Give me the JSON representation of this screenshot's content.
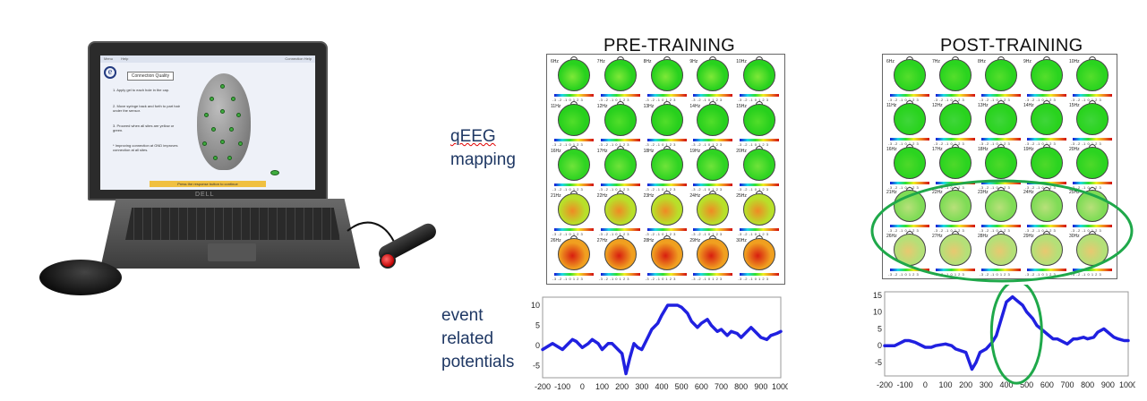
{
  "laptop": {
    "screen": {
      "topbar_left": "Menu",
      "topbar_mid": "Help",
      "topbar_right": "Connection Help",
      "connection_button": "Connection Quality",
      "step1": "1. Apply gel to each hole in the cap.",
      "step2": "2. Move syringe back and forth to part hair under the sensor.",
      "step3": "3. Proceed when all sites are yellow or green.",
      "step4": "* Improving connection at GND improves connection at all sites.",
      "bottom_bar": "Press the response button to continue"
    },
    "brand": "DELL"
  },
  "labels": {
    "qeeg": "qEEG",
    "mapping": "mapping",
    "erp_line1": "event",
    "erp_line2": "related",
    "erp_line3": "potentials"
  },
  "pre": {
    "title": "PRE-TRAINING",
    "rows": [
      {
        "freqs": [
          "6Hz",
          "7Hz",
          "8Hz",
          "9Hz",
          "10Hz"
        ],
        "color": "#28d21e",
        "hot": "#7ee838"
      },
      {
        "freqs": [
          "11Hz",
          "12Hz",
          "13Hz",
          "14Hz",
          "15Hz"
        ],
        "color": "#27d01d",
        "hot": "#52de2a"
      },
      {
        "freqs": [
          "16Hz",
          "17Hz",
          "18Hz",
          "19Hz",
          "20Hz"
        ],
        "color": "#2fd422",
        "hot": "#6fe33a"
      },
      {
        "freqs": [
          "21Hz",
          "22Hz",
          "23Hz",
          "24Hz",
          "25Hz"
        ],
        "color": "#b8e02a",
        "hot": "#f08a24"
      },
      {
        "freqs": [
          "26Hz",
          "27Hz",
          "28Hz",
          "29Hz",
          "30Hz"
        ],
        "color": "#f0a020",
        "hot": "#d81e10"
      }
    ],
    "tick_text": "-3 -2 -1 0 1 2 3"
  },
  "post": {
    "title": "POST-TRAINING",
    "rows": [
      {
        "freqs": [
          "6Hz",
          "7Hz",
          "8Hz",
          "9Hz",
          "10Hz"
        ],
        "color": "#2ad41f",
        "hot": "#55de2c"
      },
      {
        "freqs": [
          "11Hz",
          "12Hz",
          "13Hz",
          "14Hz",
          "15Hz"
        ],
        "color": "#29d31e",
        "hot": "#3fd63a"
      },
      {
        "freqs": [
          "16Hz",
          "17Hz",
          "18Hz",
          "19Hz",
          "20Hz"
        ],
        "color": "#2bd420",
        "hot": "#4ed92a"
      },
      {
        "freqs": [
          "21Hz",
          "22Hz",
          "23Hz",
          "24Hz",
          "25Hz"
        ],
        "color": "#7fdc56",
        "hot": "#b8e07a"
      },
      {
        "freqs": [
          "26Hz",
          "27Hz",
          "28Hz",
          "29Hz",
          "30Hz"
        ],
        "color": "#b4e078",
        "hot": "#e8c870"
      }
    ],
    "tick_text": "-3 -2 -1 0 1 2 3"
  },
  "colors": {
    "erp_line": "#2020e0",
    "highlight": "#1fa84a",
    "label_text": "#1f3864"
  },
  "chart_data": [
    {
      "type": "line",
      "title": "",
      "xlabel": "",
      "ylabel": "",
      "x_ticks": [
        -200,
        -100,
        0,
        100,
        200,
        300,
        400,
        500,
        600,
        700,
        800,
        900,
        1000
      ],
      "y_ticks": [
        -5,
        0,
        5,
        10
      ],
      "ylim": [
        -8,
        12
      ],
      "xlim": [
        -200,
        1000
      ],
      "series": [
        {
          "x": [
            -200,
            -150,
            -100,
            -80,
            -50,
            -30,
            0,
            30,
            50,
            80,
            100,
            130,
            150,
            180,
            200,
            220,
            240,
            260,
            280,
            300,
            330,
            350,
            380,
            400,
            430,
            450,
            480,
            500,
            530,
            550,
            580,
            600,
            630,
            650,
            680,
            700,
            730,
            750,
            780,
            800,
            830,
            850,
            880,
            900,
            930,
            950,
            980,
            1000
          ],
          "values": [
            -1,
            0.5,
            -1,
            0,
            1.5,
            1,
            -0.5,
            0.5,
            1.5,
            0.5,
            -1,
            0.5,
            0.5,
            -1,
            -2,
            -7,
            -3,
            0.5,
            -0.5,
            -1,
            2,
            4,
            5.5,
            7.5,
            10,
            10,
            10,
            9.5,
            8,
            6,
            4.5,
            5.5,
            6.5,
            5,
            3.5,
            4,
            2.5,
            3.5,
            3,
            2,
            3.5,
            4.5,
            3,
            2,
            1.5,
            2.5,
            3,
            3.5
          ]
        }
      ]
    },
    {
      "type": "line",
      "title": "",
      "xlabel": "",
      "ylabel": "",
      "x_ticks": [
        -200,
        -100,
        0,
        100,
        200,
        300,
        400,
        500,
        600,
        700,
        800,
        900,
        1000
      ],
      "y_ticks": [
        -5,
        0,
        5,
        10,
        15
      ],
      "ylim": [
        -9,
        16
      ],
      "xlim": [
        -200,
        1000
      ],
      "series": [
        {
          "x": [
            -200,
            -150,
            -100,
            -80,
            -50,
            0,
            30,
            50,
            100,
            130,
            150,
            200,
            230,
            250,
            270,
            300,
            330,
            350,
            380,
            400,
            430,
            450,
            480,
            500,
            530,
            550,
            580,
            600,
            630,
            650,
            700,
            730,
            750,
            780,
            800,
            830,
            850,
            880,
            900,
            930,
            950,
            980,
            1000
          ],
          "values": [
            0,
            0,
            1.5,
            1.5,
            1,
            -0.5,
            -0.5,
            0,
            0.5,
            0,
            -1,
            -2,
            -7,
            -5,
            -2,
            -1,
            1,
            3,
            9,
            13,
            14.5,
            13.5,
            12,
            10,
            8,
            6,
            4.5,
            3.5,
            2,
            2,
            0.5,
            2,
            2,
            2.5,
            2,
            2.5,
            4,
            5,
            4,
            2.5,
            2,
            1.5,
            1.5
          ]
        }
      ]
    }
  ]
}
